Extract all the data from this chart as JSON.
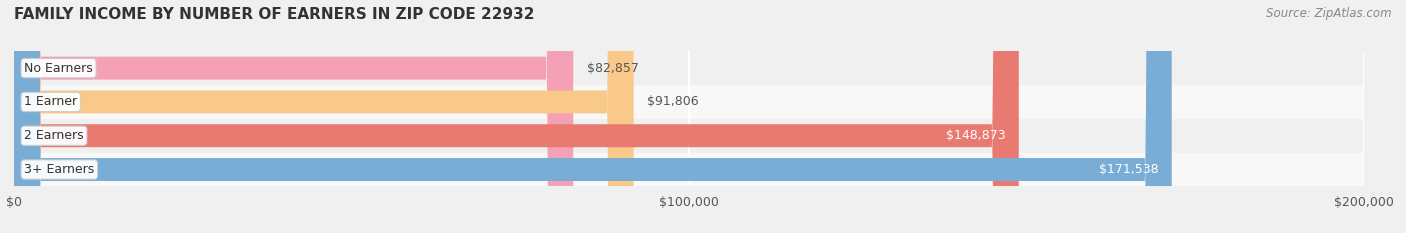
{
  "title": "FAMILY INCOME BY NUMBER OF EARNERS IN ZIP CODE 22932",
  "source": "Source: ZipAtlas.com",
  "categories": [
    "No Earners",
    "1 Earner",
    "2 Earners",
    "3+ Earners"
  ],
  "values": [
    82857,
    91806,
    148873,
    171538
  ],
  "bar_colors": [
    "#f4a0b5",
    "#f9c98a",
    "#e87a72",
    "#7aadd6"
  ],
  "label_colors": [
    "#555555",
    "#555555",
    "#ffffff",
    "#ffffff"
  ],
  "xlim": [
    0,
    200000
  ],
  "xtick_labels": [
    "$0",
    "$100,000",
    "$200,000"
  ],
  "bar_height": 0.68,
  "background_color": "#f0f0f0",
  "row_bg_colors": [
    "#f8f8f8",
    "#f0f0f0",
    "#f8f8f8",
    "#f0f0f0"
  ],
  "title_color": "#333333",
  "title_fontsize": 11,
  "source_fontsize": 8.5,
  "value_fontsize": 9,
  "label_fontsize": 9
}
